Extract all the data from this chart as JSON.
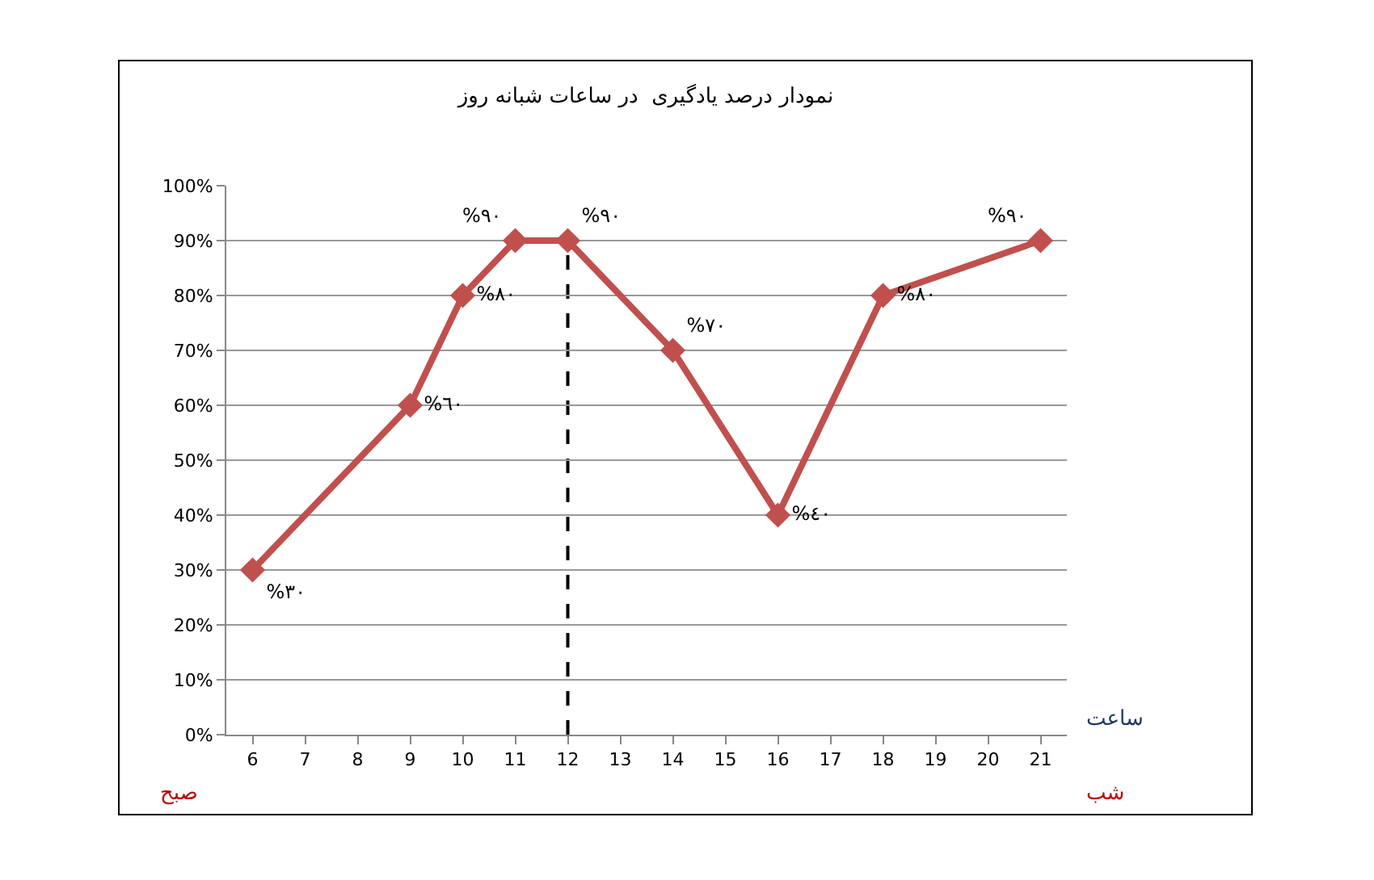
{
  "chart_data": {
    "type": "line",
    "title": "نمودار درصد یادگیری  در ساعات شبانه روز",
    "xlabel": "ساعت",
    "categories": [
      "6",
      "7",
      "8",
      "9",
      "10",
      "11",
      "12",
      "13",
      "14",
      "15",
      "16",
      "17",
      "18",
      "19",
      "20",
      "21"
    ],
    "series": [
      {
        "color": "#c0504d",
        "values": [
          30,
          null,
          null,
          60,
          80,
          90,
          90,
          null,
          70,
          null,
          40,
          null,
          80,
          null,
          null,
          90
        ],
        "value_labels": [
          "%٣٠",
          null,
          null,
          "%٦٠",
          "%٨٠",
          "%٩٠",
          "%٩٠",
          null,
          "%٧٠",
          null,
          "%٤٠",
          null,
          "%٨٠",
          null,
          null,
          "%٩٠"
        ]
      }
    ],
    "ylim": [
      0,
      100
    ],
    "yticks": [
      {
        "value": 0,
        "label": "0%"
      },
      {
        "value": 10,
        "label": "10%"
      },
      {
        "value": 20,
        "label": "20%"
      },
      {
        "value": 30,
        "label": "30%"
      },
      {
        "value": 40,
        "label": "40%"
      },
      {
        "value": 50,
        "label": "50%"
      },
      {
        "value": 60,
        "label": "60%"
      },
      {
        "value": 70,
        "label": "70%"
      },
      {
        "value": 80,
        "label": "80%"
      },
      {
        "value": 90,
        "label": "90%"
      },
      {
        "value": 100,
        "label": "100%"
      }
    ],
    "grid": "y",
    "marker": "diamond",
    "line_style": "solid",
    "legend": false,
    "ref_lines": [
      {
        "axis": "x",
        "value": "12",
        "line_style": "dashed",
        "color": "#000000"
      }
    ],
    "annotations": [
      "صبح",
      "شب"
    ]
  }
}
